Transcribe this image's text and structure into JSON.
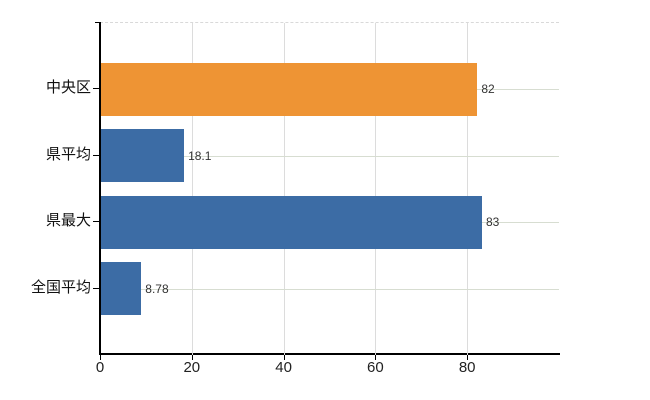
{
  "chart_data": {
    "type": "bar",
    "orientation": "horizontal",
    "title": "",
    "xlabel": "",
    "ylabel": "",
    "categories": [
      "中央区",
      "県平均",
      "県最大",
      "全国平均"
    ],
    "values": [
      82,
      18.1,
      83,
      8.78
    ],
    "value_labels": [
      "82",
      "18.1",
      "83",
      "8.78"
    ],
    "bar_colors": [
      "#EE9434",
      "#3C6CA5",
      "#3C6CA5",
      "#3C6CA5"
    ],
    "x_ticks": [
      0,
      20,
      40,
      60,
      80
    ],
    "x_tick_labels": [
      "0",
      "20",
      "40",
      "60",
      "80"
    ],
    "xlim": [
      0,
      100
    ],
    "grid": true,
    "legend": false,
    "colors": {
      "highlight_bar": "#EE9434",
      "default_bar": "#3C6CA5",
      "axis_line": "#000000",
      "vertical_gridline": "#dcdcdc",
      "horizontal_gridline": "#d7ddd1",
      "plot_top_border": "#d9d9d9",
      "axis_tick_label_text": "#222222",
      "category_label_text": "#111111",
      "value_label_text": "#333333"
    }
  }
}
